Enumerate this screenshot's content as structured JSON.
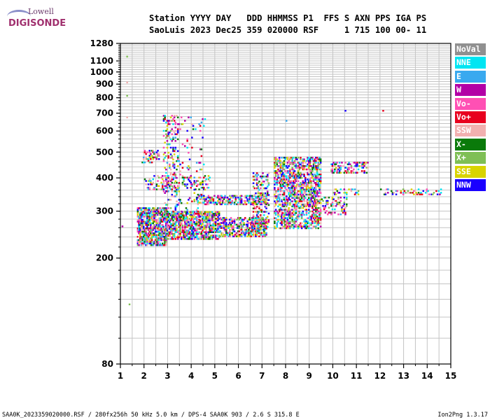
{
  "logo": {
    "line1": "Lowell",
    "line2": "DIGISONDE"
  },
  "header": {
    "line1": "Station YYYY DAY   DDD HHMMSS P1  FFS S AXN PPS IGA PS",
    "line2": "SaoLuis 2023 Dec25 359 020000 RSF     1 715 100 00- 11"
  },
  "legend": [
    {
      "label": "NoVal",
      "color": "#909090"
    },
    {
      "label": "NNE",
      "color": "#00e5f2"
    },
    {
      "label": "E",
      "color": "#39a9ef"
    },
    {
      "label": "W",
      "color": "#b300a6"
    },
    {
      "label": "Vo-",
      "color": "#ff50b4"
    },
    {
      "label": "Vo+",
      "color": "#e8001f"
    },
    {
      "label": "SSW",
      "color": "#f2b0b0"
    },
    {
      "label": "X-",
      "color": "#0a7a0a"
    },
    {
      "label": "X+",
      "color": "#7fbf55"
    },
    {
      "label": "SSE",
      "color": "#d9d400"
    },
    {
      "label": "NNW",
      "color": "#1a00ff"
    }
  ],
  "footer": {
    "left": "SAA0K_2023359020000.RSF / 280fx256h 50 kHz 5.0 km / DPS-4 SAA0K 903 / 2.6 S 315.8 E",
    "right": "Ion2Png 1.3.17"
  },
  "chart_data": {
    "type": "scatter",
    "xlabel": "",
    "ylabel": "",
    "xlim": [
      1,
      15
    ],
    "ylim": [
      80,
      1280
    ],
    "x_ticks": [
      1,
      2,
      3,
      4,
      5,
      6,
      7,
      8,
      9,
      10,
      11,
      12,
      13,
      14,
      15
    ],
    "y_ticks": [
      80,
      200,
      300,
      400,
      500,
      600,
      700,
      800,
      900,
      1000,
      1100,
      1280
    ],
    "y_scale": "log",
    "grid": true,
    "legend_position": "right",
    "clusters": [
      {
        "name": "lower-trace-a",
        "x": [
          1.7,
          2.9
        ],
        "y": [
          225,
          310
        ],
        "density": 0.75
      },
      {
        "name": "lower-trace-b",
        "x": [
          2.9,
          5.2
        ],
        "y": [
          235,
          300
        ],
        "density": 0.7
      },
      {
        "name": "lower-trace-c",
        "x": [
          5.2,
          7.2
        ],
        "y": [
          240,
          285
        ],
        "density": 0.6
      },
      {
        "name": "band-330",
        "x": [
          4.2,
          7.2
        ],
        "y": [
          320,
          345
        ],
        "density": 0.55
      },
      {
        "name": "band-380",
        "x": [
          2.0,
          4.8
        ],
        "y": [
          365,
          410
        ],
        "density": 0.22
      },
      {
        "name": "upper-2",
        "x": [
          1.9,
          2.6
        ],
        "y": [
          460,
          510
        ],
        "density": 0.3
      },
      {
        "name": "spread-3",
        "x": [
          2.8,
          3.4
        ],
        "y": [
          300,
          690
        ],
        "density": 0.22
      },
      {
        "name": "spread-3b",
        "x": [
          3.4,
          4.6
        ],
        "y": [
          280,
          680
        ],
        "density": 0.06
      },
      {
        "name": "rise-6.6",
        "x": [
          6.6,
          7.3
        ],
        "y": [
          260,
          420
        ],
        "density": 0.4
      },
      {
        "name": "block-8",
        "x": [
          7.5,
          9.5
        ],
        "y": [
          260,
          480
        ],
        "density": 0.55
      },
      {
        "name": "block-10-a",
        "x": [
          9.5,
          10.6
        ],
        "y": [
          290,
          340
        ],
        "density": 0.3
      },
      {
        "name": "block-10-b",
        "x": [
          9.9,
          11.5
        ],
        "y": [
          420,
          460
        ],
        "density": 0.35
      },
      {
        "name": "trail-10-12",
        "x": [
          10.0,
          11.1
        ],
        "y": [
          348,
          365
        ],
        "density": 0.3
      },
      {
        "name": "trail-12-14.6",
        "x": [
          12.0,
          14.6
        ],
        "y": [
          348,
          365
        ],
        "density": 0.22
      }
    ],
    "points": [
      {
        "x": 1.25,
        "y": 1150
      },
      {
        "x": 1.25,
        "y": 920
      },
      {
        "x": 1.25,
        "y": 820
      },
      {
        "x": 1.25,
        "y": 680
      },
      {
        "x": 1.35,
        "y": 135
      },
      {
        "x": 1.05,
        "y": 265
      },
      {
        "x": 10.5,
        "y": 720
      },
      {
        "x": 12.1,
        "y": 720
      },
      {
        "x": 8.0,
        "y": 660
      },
      {
        "x": 12.3,
        "y": 365
      },
      {
        "x": 12.5,
        "y": 350
      }
    ]
  }
}
